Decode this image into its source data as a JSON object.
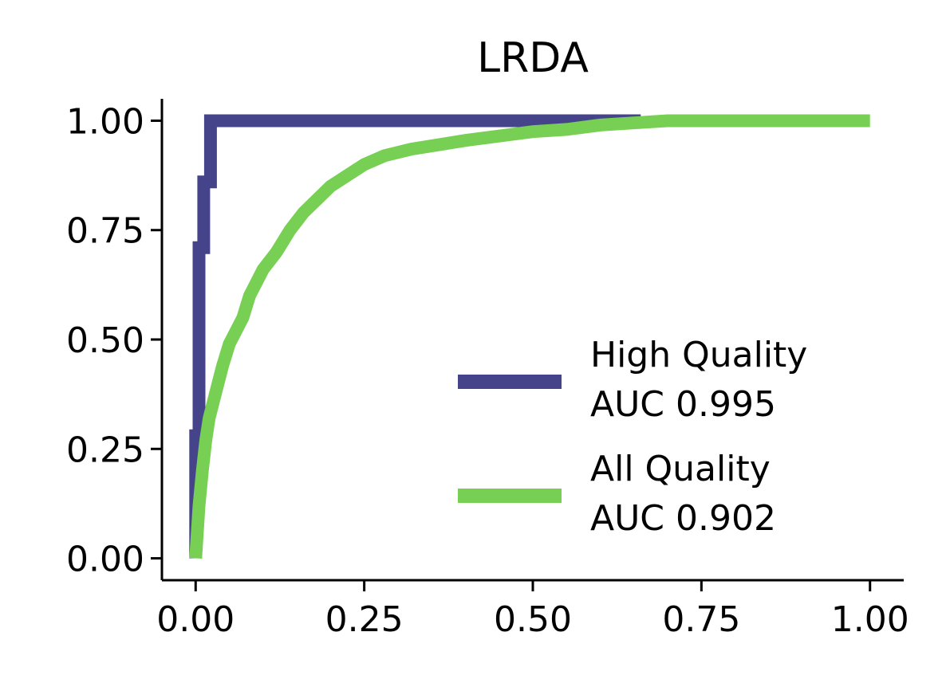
{
  "chart_data": {
    "type": "line",
    "title": "LRDA",
    "xlabel": "",
    "ylabel": "",
    "xlim": [
      -0.05,
      1.05
    ],
    "ylim": [
      -0.05,
      1.05
    ],
    "xticks": [
      0.0,
      0.25,
      0.5,
      0.75,
      1.0
    ],
    "xtick_labels": [
      "0.00",
      "0.25",
      "0.50",
      "0.75",
      "1.00"
    ],
    "yticks": [
      0.0,
      0.25,
      0.5,
      0.75,
      1.0
    ],
    "ytick_labels": [
      "0.00",
      "0.25",
      "0.50",
      "0.75",
      "1.00"
    ],
    "grid": false,
    "legend_position": "lower-right",
    "series": [
      {
        "label_lines": [
          "High Quality",
          "AUC 0.995"
        ],
        "color": "#45448a",
        "points": [
          [
            0.0,
            0.0
          ],
          [
            0.0,
            0.28
          ],
          [
            0.005,
            0.28
          ],
          [
            0.005,
            0.71
          ],
          [
            0.012,
            0.71
          ],
          [
            0.012,
            0.86
          ],
          [
            0.022,
            0.86
          ],
          [
            0.022,
            1.0
          ],
          [
            0.66,
            1.0
          ]
        ]
      },
      {
        "label_lines": [
          "All Quality",
          "AUC 0.902"
        ],
        "color": "#77d054",
        "points": [
          [
            0.0,
            0.0
          ],
          [
            0.005,
            0.12
          ],
          [
            0.01,
            0.2
          ],
          [
            0.015,
            0.27
          ],
          [
            0.02,
            0.32
          ],
          [
            0.03,
            0.38
          ],
          [
            0.04,
            0.44
          ],
          [
            0.05,
            0.49
          ],
          [
            0.06,
            0.52
          ],
          [
            0.07,
            0.55
          ],
          [
            0.08,
            0.6
          ],
          [
            0.09,
            0.63
          ],
          [
            0.1,
            0.66
          ],
          [
            0.12,
            0.7
          ],
          [
            0.14,
            0.75
          ],
          [
            0.16,
            0.79
          ],
          [
            0.18,
            0.82
          ],
          [
            0.2,
            0.85
          ],
          [
            0.22,
            0.87
          ],
          [
            0.25,
            0.9
          ],
          [
            0.28,
            0.92
          ],
          [
            0.32,
            0.935
          ],
          [
            0.36,
            0.945
          ],
          [
            0.4,
            0.955
          ],
          [
            0.45,
            0.965
          ],
          [
            0.5,
            0.975
          ],
          [
            0.55,
            0.98
          ],
          [
            0.6,
            0.99
          ],
          [
            0.65,
            0.995
          ],
          [
            0.7,
            1.0
          ],
          [
            1.0,
            1.0
          ]
        ]
      }
    ]
  }
}
